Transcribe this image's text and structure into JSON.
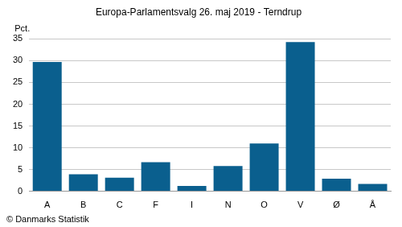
{
  "chart_data": {
    "type": "bar",
    "title": "Europa-Parlamentsvalg 26. maj 2019 - Terndrup",
    "ylabel": "Pct.",
    "source": "© Danmarks Statistik",
    "categories": [
      "A",
      "B",
      "C",
      "F",
      "I",
      "N",
      "O",
      "V",
      "Ø",
      "Å"
    ],
    "values": [
      29.7,
      3.9,
      3.1,
      6.7,
      1.2,
      5.8,
      11.0,
      34.3,
      2.9,
      1.7
    ],
    "color": "#0a5f8e",
    "ylim": [
      0,
      35
    ],
    "yticks": [
      0,
      5,
      10,
      15,
      20,
      25,
      30,
      35
    ],
    "grid": true
  }
}
